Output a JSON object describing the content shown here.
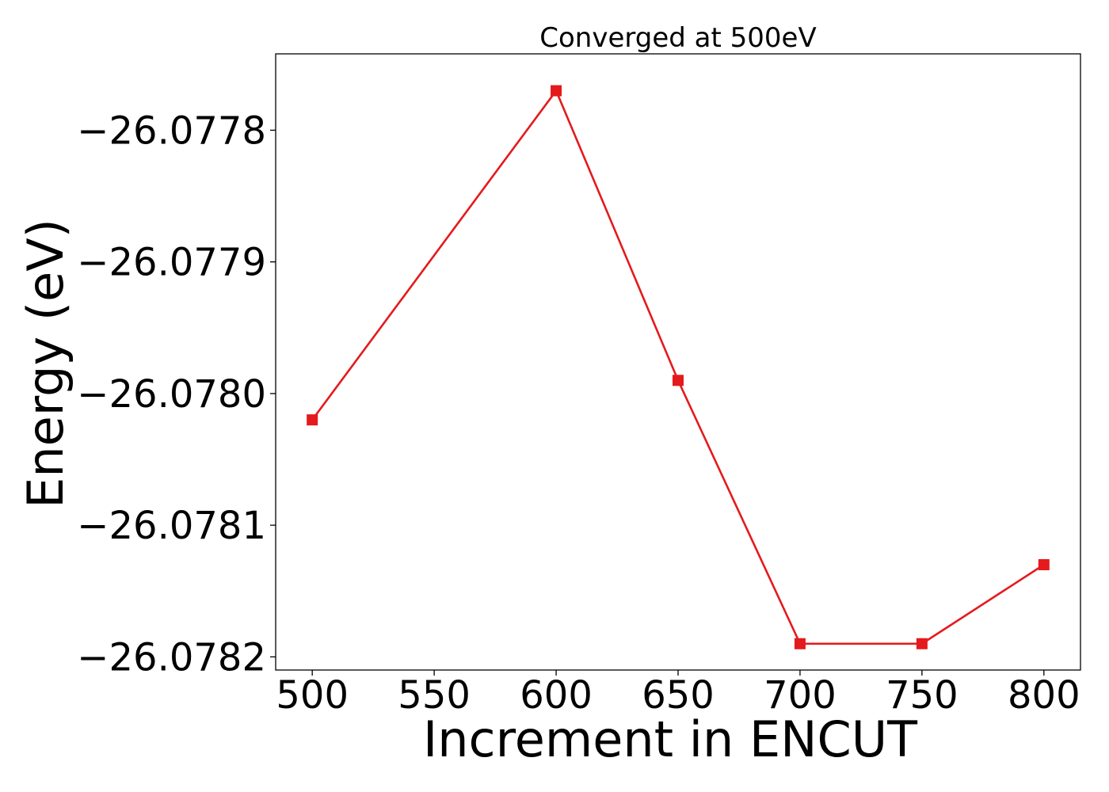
{
  "chart_data": {
    "type": "line",
    "title": "Converged at 500eV",
    "xlabel": "Increment in ENCUT",
    "ylabel": "Energy (eV)",
    "x": [
      500,
      600,
      650,
      700,
      750,
      800
    ],
    "y": [
      -26.07802,
      -26.07777,
      -26.07799,
      -26.07819,
      -26.07819,
      -26.07813
    ],
    "xlim": [
      485,
      815
    ],
    "ylim": [
      -26.07821,
      -26.077742
    ],
    "xticks": [
      500,
      550,
      600,
      650,
      700,
      750,
      800
    ],
    "xtick_labels": [
      "500",
      "550",
      "600",
      "650",
      "700",
      "750",
      "800"
    ],
    "yticks": [
      -26.0778,
      -26.0779,
      -26.078,
      -26.0781,
      -26.0782
    ],
    "ytick_labels": [
      "−26.0778",
      "−26.0779",
      "−26.0780",
      "−26.0781",
      "−26.0782"
    ],
    "series": [
      {
        "values": [
          -26.07802,
          -26.07777,
          -26.07799,
          -26.07819,
          -26.07819,
          -26.07813
        ],
        "color": "#e41a1c",
        "marker": "square"
      }
    ],
    "grid": false,
    "legend": "none"
  }
}
